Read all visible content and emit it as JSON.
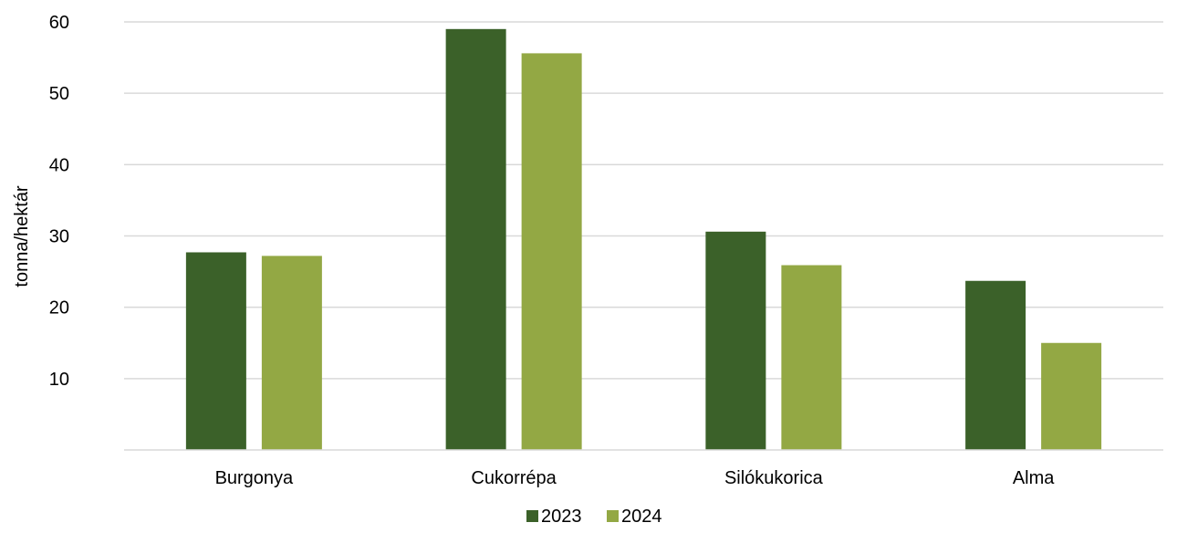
{
  "chart_data": {
    "type": "bar",
    "categories": [
      "Burgonya",
      "Cukorrépa",
      "Silókukorica",
      "Alma"
    ],
    "series": [
      {
        "name": "2023",
        "values": [
          27.7,
          59.0,
          30.6,
          23.7
        ],
        "color": "#3b6129"
      },
      {
        "name": "2024",
        "values": [
          27.2,
          55.6,
          25.9,
          15.0
        ],
        "color": "#93a844"
      }
    ],
    "title": "",
    "xlabel": "",
    "ylabel": "tonna/hektár",
    "ylim": [
      0,
      60
    ],
    "yticks": [
      10,
      20,
      30,
      40,
      50,
      60
    ],
    "grid": true,
    "legend": "bottom"
  }
}
